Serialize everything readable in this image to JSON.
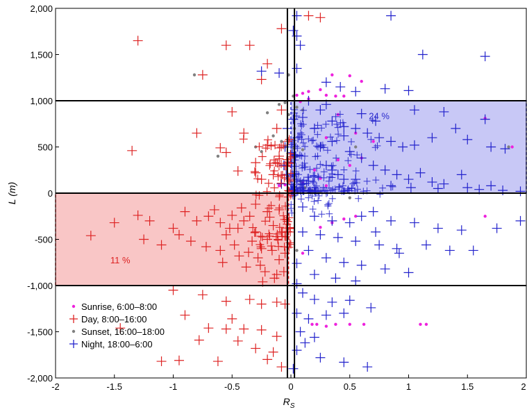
{
  "chart_data": {
    "type": "scatter",
    "xlabel": "R",
    "xlabel_sub": "S",
    "ylabel": "L (m)",
    "xlim": [
      -2,
      2
    ],
    "ylim": [
      -2000,
      2000
    ],
    "x_ticks": [
      -2,
      -1.5,
      -1,
      -0.5,
      0,
      0.5,
      1,
      1.5,
      2
    ],
    "x_tick_labels": [
      "-2",
      "-1.5",
      "-1",
      "-0.5",
      "0",
      "0.5",
      "1",
      "1.5",
      "2"
    ],
    "y_ticks": [
      -2000,
      -1500,
      -1000,
      -500,
      0,
      500,
      1000,
      1500,
      2000
    ],
    "y_tick_labels": [
      "-2,000",
      "-1,500",
      "-1,000",
      "-500",
      "0",
      "500",
      "1,000",
      "1,500",
      "2,000"
    ],
    "grid": false,
    "legend_position": "bottom-left",
    "reference_lines": {
      "horizontal": [
        -1000,
        0,
        1000
      ],
      "vertical": [
        -0.03,
        0.03
      ]
    },
    "regions": [
      {
        "label": "24 %",
        "x": [
          0,
          2
        ],
        "y": [
          0,
          1000
        ],
        "fill": "#c8c8f6",
        "edge": "#2a2acc",
        "label_x": 0.75,
        "label_y": 800,
        "label_color": "#2a2acc"
      },
      {
        "label": "11 %",
        "x": [
          -2,
          -0.02
        ],
        "y": [
          -1000,
          0
        ],
        "fill": "#f9c6c6",
        "edge": "#dd2222",
        "label_x": -1.45,
        "label_y": -760,
        "label_color": "#dd2222"
      }
    ],
    "series": [
      {
        "name": "Sunrise, 6:00–8:00",
        "marker": "dot",
        "color": "#ee22dd",
        "points": [
          [
            0.05,
            1060
          ],
          [
            0.1,
            1080
          ],
          [
            0.15,
            1100
          ],
          [
            0.25,
            1120
          ],
          [
            0.3,
            1060
          ],
          [
            0.38,
            1050
          ],
          [
            0.5,
            1270
          ],
          [
            0.6,
            1210
          ],
          [
            0.15,
            1020
          ],
          [
            0.08,
            990
          ],
          [
            0.4,
            850
          ],
          [
            0.3,
            600
          ],
          [
            0.55,
            650
          ],
          [
            0.7,
            560
          ],
          [
            0.6,
            380
          ],
          [
            0.4,
            360
          ],
          [
            0.5,
            300
          ],
          [
            0.2,
            250
          ],
          [
            0.25,
            160
          ],
          [
            0.1,
            110
          ],
          [
            -0.05,
            90
          ],
          [
            -0.1,
            80
          ],
          [
            0.3,
            80
          ],
          [
            1.65,
            810
          ],
          [
            1.88,
            500
          ],
          [
            0.55,
            -250
          ],
          [
            0.45,
            -280
          ],
          [
            0.35,
            -320
          ],
          [
            0.25,
            -370
          ],
          [
            1.65,
            -250
          ],
          [
            0.1,
            -650
          ],
          [
            0.18,
            -1420
          ],
          [
            0.22,
            -1420
          ],
          [
            0.3,
            -1440
          ],
          [
            0.38,
            -1420
          ],
          [
            0.5,
            -1420
          ],
          [
            0.62,
            -1420
          ],
          [
            1.1,
            -1420
          ],
          [
            1.15,
            -1420
          ],
          [
            0.45,
            1050
          ],
          [
            0.35,
            1280
          ]
        ]
      },
      {
        "name": "Day, 8:00–16:00",
        "marker": "plus",
        "color": "#dd2222",
        "points": [
          [
            -1.3,
            1650
          ],
          [
            -0.55,
            1600
          ],
          [
            -0.35,
            1600
          ],
          [
            -0.75,
            1280
          ],
          [
            -0.25,
            1230
          ],
          [
            -0.08,
            1780
          ],
          [
            -0.2,
            1400
          ],
          [
            -1.35,
            460
          ],
          [
            -0.8,
            650
          ],
          [
            -0.4,
            650
          ],
          [
            -0.5,
            880
          ],
          [
            -0.6,
            490
          ],
          [
            -0.55,
            440
          ],
          [
            -0.3,
            330
          ],
          [
            -0.45,
            240
          ],
          [
            -0.3,
            220
          ],
          [
            -0.25,
            150
          ],
          [
            -0.15,
            200
          ],
          [
            -0.1,
            400
          ],
          [
            -0.2,
            520
          ],
          [
            -0.12,
            700
          ],
          [
            -0.08,
            900
          ],
          [
            0.15,
            1920
          ],
          [
            0.25,
            1900
          ],
          [
            -0.05,
            300
          ],
          [
            -0.02,
            150
          ],
          [
            -1.7,
            -460
          ],
          [
            -1.5,
            -320
          ],
          [
            -1.3,
            -240
          ],
          [
            -1.2,
            -300
          ],
          [
            -1.0,
            -380
          ],
          [
            -0.9,
            -200
          ],
          [
            -0.85,
            -520
          ],
          [
            -0.8,
            -300
          ],
          [
            -0.7,
            -250
          ],
          [
            -0.6,
            -320
          ],
          [
            -0.55,
            -450
          ],
          [
            -0.5,
            -240
          ],
          [
            -0.45,
            -380
          ],
          [
            -0.4,
            -300
          ],
          [
            -0.35,
            -250
          ],
          [
            -0.3,
            -420
          ],
          [
            -0.25,
            -600
          ],
          [
            -0.2,
            -500
          ],
          [
            -0.15,
            -350
          ],
          [
            -0.1,
            -720
          ],
          [
            -0.38,
            -800
          ],
          [
            -0.28,
            -700
          ],
          [
            -0.22,
            -850
          ],
          [
            -0.12,
            -880
          ],
          [
            -0.05,
            -650
          ],
          [
            -0.6,
            -620
          ],
          [
            -0.72,
            -580
          ],
          [
            -1.1,
            -560
          ],
          [
            -1.25,
            -500
          ],
          [
            -0.95,
            -450
          ],
          [
            -0.65,
            -180
          ],
          [
            -0.42,
            -160
          ],
          [
            -0.3,
            -120
          ],
          [
            -0.2,
            -200
          ],
          [
            -0.1,
            -180
          ],
          [
            -0.18,
            -260
          ],
          [
            -0.33,
            -520
          ],
          [
            -0.48,
            -560
          ],
          [
            -0.58,
            -750
          ],
          [
            -0.08,
            -420
          ],
          [
            -0.16,
            -620
          ],
          [
            -0.26,
            -780
          ],
          [
            -0.36,
            -640
          ],
          [
            -0.14,
            -920
          ],
          [
            -0.24,
            -960
          ],
          [
            -0.06,
            -850
          ],
          [
            -0.44,
            -680
          ],
          [
            -0.52,
            -380
          ],
          [
            -1.0,
            -1050
          ],
          [
            -0.75,
            -1100
          ],
          [
            -0.55,
            -1170
          ],
          [
            -0.35,
            -1150
          ],
          [
            -0.25,
            -1200
          ],
          [
            -0.12,
            -1180
          ],
          [
            -0.05,
            -1200
          ],
          [
            -0.9,
            -1320
          ],
          [
            -0.7,
            -1460
          ],
          [
            -0.55,
            -1470
          ],
          [
            -0.4,
            -1470
          ],
          [
            -0.25,
            -1480
          ],
          [
            -0.12,
            -1550
          ],
          [
            -0.78,
            -1590
          ],
          [
            -0.45,
            -1600
          ],
          [
            -0.3,
            -1680
          ],
          [
            -0.15,
            -1720
          ],
          [
            -0.08,
            -1880
          ],
          [
            -1.1,
            -1820
          ],
          [
            -0.95,
            -1810
          ],
          [
            -0.62,
            -1820
          ],
          [
            -0.2,
            -1800
          ],
          [
            -0.5,
            -1360
          ],
          [
            -1.45,
            -1460
          ]
        ]
      },
      {
        "name": "Sunset, 16:00–18:00",
        "marker": "dot",
        "color": "#808080",
        "points": [
          [
            -0.82,
            1280
          ],
          [
            -0.02,
            1280
          ],
          [
            0.02,
            1050
          ],
          [
            -0.05,
            980
          ],
          [
            -0.1,
            960
          ],
          [
            0.05,
            930
          ],
          [
            0.1,
            900
          ],
          [
            -0.2,
            870
          ],
          [
            -0.15,
            620
          ],
          [
            -0.08,
            560
          ],
          [
            -0.05,
            500
          ],
          [
            0.02,
            490
          ],
          [
            0.1,
            470
          ],
          [
            -0.3,
            500
          ],
          [
            -0.62,
            400
          ],
          [
            -0.25,
            450
          ],
          [
            0.05,
            400
          ],
          [
            0.55,
            500
          ],
          [
            1.85,
            500
          ],
          [
            0.08,
            130
          ],
          [
            0.12,
            60
          ],
          [
            0.18,
            30
          ],
          [
            0.25,
            20
          ],
          [
            0.5,
            -50
          ],
          [
            0.05,
            -620
          ],
          [
            -0.02,
            850
          ],
          [
            0.03,
            700
          ]
        ]
      },
      {
        "name": "Night, 18:00–6:00",
        "marker": "plus",
        "color": "#2222cc",
        "points": [
          [
            0.85,
            1920
          ],
          [
            0.05,
            1920
          ],
          [
            0.02,
            1760
          ],
          [
            0.05,
            1700
          ],
          [
            0.08,
            1600
          ],
          [
            1.12,
            1500
          ],
          [
            1.65,
            1480
          ],
          [
            0.3,
            1200
          ],
          [
            0.42,
            1150
          ],
          [
            0.55,
            1100
          ],
          [
            0.8,
            1130
          ],
          [
            1.0,
            1110
          ],
          [
            -0.25,
            1320
          ],
          [
            -0.1,
            1300
          ],
          [
            0.05,
            1350
          ],
          [
            0.15,
            1000
          ],
          [
            0.25,
            900
          ],
          [
            0.35,
            780
          ],
          [
            0.45,
            720
          ],
          [
            0.55,
            700
          ],
          [
            0.65,
            650
          ],
          [
            0.75,
            600
          ],
          [
            0.85,
            560
          ],
          [
            0.95,
            500
          ],
          [
            1.05,
            520
          ],
          [
            1.2,
            600
          ],
          [
            1.4,
            700
          ],
          [
            1.5,
            580
          ],
          [
            1.65,
            800
          ],
          [
            1.7,
            500
          ],
          [
            1.82,
            480
          ],
          [
            0.5,
            450
          ],
          [
            0.6,
            380
          ],
          [
            0.7,
            300
          ],
          [
            0.8,
            250
          ],
          [
            0.9,
            200
          ],
          [
            1.0,
            150
          ],
          [
            1.1,
            220
          ],
          [
            1.2,
            120
          ],
          [
            1.3,
            100
          ],
          [
            1.5,
            60
          ],
          [
            1.6,
            40
          ],
          [
            1.7,
            80
          ],
          [
            1.8,
            30
          ],
          [
            1.95,
            20
          ],
          [
            0.3,
            300
          ],
          [
            0.35,
            250
          ],
          [
            0.4,
            200
          ],
          [
            0.45,
            150
          ],
          [
            0.2,
            180
          ],
          [
            0.15,
            130
          ],
          [
            0.1,
            100
          ],
          [
            0.05,
            60
          ],
          [
            0.02,
            40
          ],
          [
            0.03,
            200
          ],
          [
            0.04,
            400
          ],
          [
            0.06,
            600
          ],
          [
            0.02,
            800
          ],
          [
            -0.03,
            700
          ],
          [
            -0.05,
            500
          ],
          [
            -0.06,
            300
          ],
          [
            -0.04,
            200
          ],
          [
            -0.08,
            100
          ],
          [
            0.25,
            500
          ],
          [
            0.35,
            560
          ],
          [
            0.45,
            620
          ],
          [
            0.2,
            700
          ],
          [
            0.1,
            820
          ],
          [
            0.3,
            960
          ],
          [
            0.6,
            860
          ],
          [
            0.72,
            780
          ],
          [
            1.05,
            900
          ],
          [
            1.3,
            880
          ],
          [
            1.45,
            200
          ],
          [
            0.55,
            150
          ],
          [
            0.85,
            80
          ],
          [
            1.02,
            60
          ],
          [
            1.25,
            50
          ],
          [
            0.1,
            -150
          ],
          [
            0.2,
            -250
          ],
          [
            0.35,
            -300
          ],
          [
            0.5,
            -320
          ],
          [
            0.6,
            -250
          ],
          [
            0.7,
            -200
          ],
          [
            0.85,
            -300
          ],
          [
            1.05,
            -320
          ],
          [
            1.25,
            -380
          ],
          [
            1.45,
            -400
          ],
          [
            1.75,
            -380
          ],
          [
            1.95,
            -300
          ],
          [
            0.25,
            -450
          ],
          [
            0.4,
            -480
          ],
          [
            0.55,
            -520
          ],
          [
            0.75,
            -560
          ],
          [
            0.9,
            -600
          ],
          [
            1.15,
            -560
          ],
          [
            1.35,
            -620
          ],
          [
            1.55,
            -620
          ],
          [
            0.15,
            -620
          ],
          [
            0.3,
            -700
          ],
          [
            0.45,
            -750
          ],
          [
            0.6,
            -780
          ],
          [
            0.8,
            -820
          ],
          [
            1.0,
            -860
          ],
          [
            0.2,
            -880
          ],
          [
            0.38,
            -920
          ],
          [
            0.55,
            -950
          ],
          [
            0.05,
            -980
          ],
          [
            0.1,
            -1080
          ],
          [
            0.2,
            -1150
          ],
          [
            0.35,
            -1180
          ],
          [
            0.5,
            -1160
          ],
          [
            0.68,
            -1240
          ],
          [
            0.05,
            -1300
          ],
          [
            0.15,
            -1360
          ],
          [
            0.3,
            -1320
          ],
          [
            0.45,
            -1300
          ],
          [
            0.08,
            -1500
          ],
          [
            0.2,
            -1560
          ],
          [
            0.05,
            -1700
          ],
          [
            0.25,
            -1780
          ],
          [
            0.45,
            -1830
          ],
          [
            0.65,
            -1880
          ],
          [
            0.12,
            -1620
          ],
          [
            0.02,
            -1900
          ],
          [
            0.92,
            -650
          ],
          [
            0.72,
            -420
          ],
          [
            0.1,
            -420
          ],
          [
            0.05,
            -760
          ]
        ]
      }
    ]
  }
}
